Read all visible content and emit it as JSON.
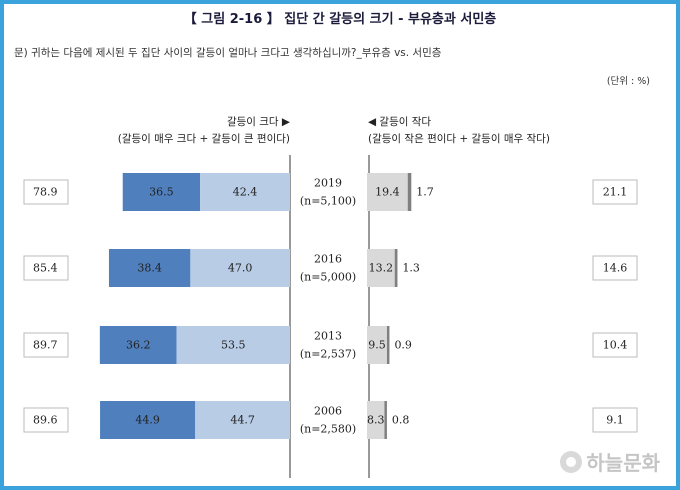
{
  "title": "【 그림 2-16 】 집단 간 갈등의 크기 - 부유층과 서민층",
  "question": "문) 귀하는 다음에 제시된 두 집단 사이의 갈등이 얼마나 크다고 생각하십니까?_부유층 vs. 서민층",
  "unit": "(단위 : %)",
  "header_left": [
    "갈등이 크다 ▶",
    "(갈등이 매우 크다 + 갈등이 큰 편이다)"
  ],
  "header_right": [
    "◀ 갈등이 작다",
    "(갈등이 작은 편이다 + 갈등이 매우 작다)"
  ],
  "watermark": "하늘문화",
  "colors": {
    "very_large": "#4f7fbd",
    "large": "#b8cce6",
    "small": "#d9d9d9",
    "very_small": "#808080",
    "frame": "#3aa3dc"
  },
  "chart_data": {
    "type": "bar",
    "orientation": "horizontal-diverging",
    "categories": [
      "2019",
      "2016",
      "2013",
      "2006"
    ],
    "sample_sizes": [
      "(n=5,100)",
      "(n=5,000)",
      "(n=2,537)",
      "(n=2,580)"
    ],
    "series": [
      {
        "values": [
          36.5,
          38.4,
          36.2,
          44.9
        ]
      },
      {
        "values": [
          42.4,
          47.0,
          53.5,
          44.7
        ]
      },
      {
        "values": [
          19.4,
          13.2,
          9.5,
          8.3
        ]
      },
      {
        "values": [
          1.7,
          1.3,
          0.9,
          0.8
        ]
      }
    ],
    "value_labels": [
      [
        "36.5",
        "42.4",
        "19.4",
        "1.7"
      ],
      [
        "38.4",
        "47.0",
        "13.2",
        "1.3"
      ],
      [
        "36.2",
        "53.5",
        "9.5",
        "0.9"
      ],
      [
        "44.9",
        "44.7",
        "8.3",
        "0.8"
      ]
    ],
    "totals_large": [
      "78.9",
      "85.4",
      "89.7",
      "89.6"
    ],
    "totals_small": [
      "21.1",
      "14.6",
      "10.4",
      "9.1"
    ]
  }
}
